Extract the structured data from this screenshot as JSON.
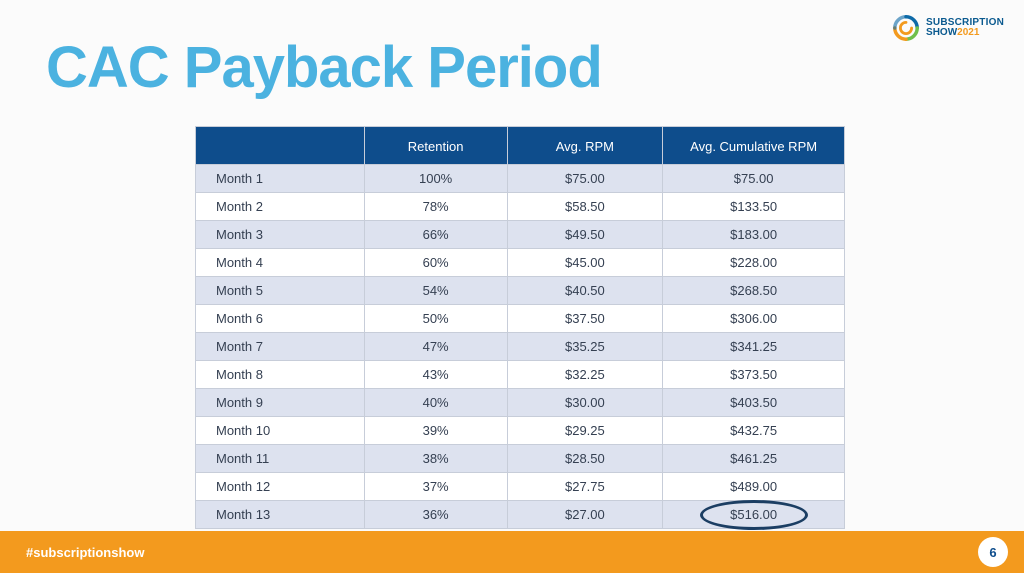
{
  "title": "CAC Payback Period",
  "logo": {
    "line1": "SUBSCRIPTION",
    "line2a": "SHOW",
    "line2b": "2021",
    "swirl_colors": [
      "#f39a1e",
      "#6fbf4b",
      "#0e6aa8"
    ]
  },
  "table": {
    "header_bg": "#0e4d8c",
    "header_fg": "#ffffff",
    "row_odd_bg": "#dde2ef",
    "row_even_bg": "#ffffff",
    "border_color": "#c7cdd9",
    "text_color": "#354052",
    "font_size": 13,
    "columns": [
      "",
      "Retention",
      "Avg. RPM",
      "Avg. Cumulative RPM"
    ],
    "rows": [
      [
        "Month 1",
        "100%",
        "$75.00",
        "$75.00"
      ],
      [
        "Month 2",
        "78%",
        "$58.50",
        "$133.50"
      ],
      [
        "Month 3",
        "66%",
        "$49.50",
        "$183.00"
      ],
      [
        "Month 4",
        "60%",
        "$45.00",
        "$228.00"
      ],
      [
        "Month 5",
        "54%",
        "$40.50",
        "$268.50"
      ],
      [
        "Month 6",
        "50%",
        "$37.50",
        "$306.00"
      ],
      [
        "Month 7",
        "47%",
        "$35.25",
        "$341.25"
      ],
      [
        "Month 8",
        "43%",
        "$32.25",
        "$373.50"
      ],
      [
        "Month 9",
        "40%",
        "$30.00",
        "$403.50"
      ],
      [
        "Month 10",
        "39%",
        "$29.25",
        "$432.75"
      ],
      [
        "Month 11",
        "38%",
        "$28.50",
        "$461.25"
      ],
      [
        "Month 12",
        "37%",
        "$27.75",
        "$489.00"
      ],
      [
        "Month 13",
        "36%",
        "$27.00",
        "$516.00"
      ]
    ],
    "highlight": {
      "row": 12,
      "col": 3,
      "circle_color": "#1b3e63",
      "circle_width": 3
    }
  },
  "footer": {
    "bar_color": "#f39a1e",
    "hashtag": "#subscriptionshow",
    "page_number": "6"
  },
  "colors": {
    "title": "#4bb2e0",
    "background": "#fbfbfb"
  }
}
